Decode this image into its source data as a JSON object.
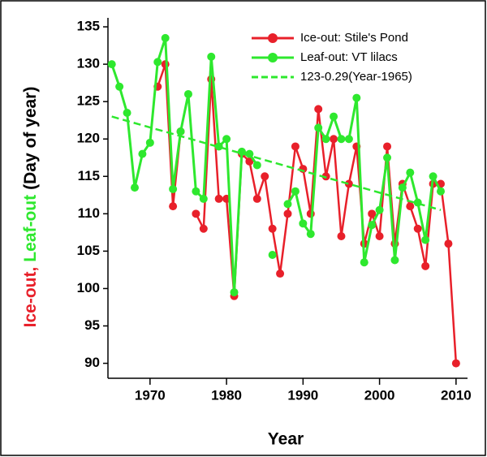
{
  "chart_data": {
    "type": "line",
    "x_label": "Year",
    "y_label_parts": [
      {
        "text": "Ice-out,",
        "color": "#e8202a"
      },
      {
        "text": "Leaf-out",
        "color": "#2ee82e"
      },
      {
        "text": "(Day of year)",
        "color": "#000000"
      }
    ],
    "x": [
      1965,
      1966,
      1967,
      1968,
      1969,
      1970,
      1971,
      1972,
      1973,
      1974,
      1975,
      1976,
      1977,
      1978,
      1979,
      1980,
      1981,
      1982,
      1983,
      1984,
      1985,
      1986,
      1987,
      1988,
      1989,
      1990,
      1991,
      1992,
      1993,
      1994,
      1995,
      1996,
      1997,
      1998,
      1999,
      2000,
      2001,
      2002,
      2003,
      2004,
      2005,
      2006,
      2007,
      2008,
      2009,
      2010
    ],
    "series": [
      {
        "name": "Ice-out: Stile's Pond",
        "color": "#e8202a",
        "values": [
          null,
          null,
          null,
          null,
          null,
          null,
          127,
          130,
          111,
          121,
          null,
          110,
          108,
          128,
          112,
          112,
          99,
          118,
          117,
          112,
          115,
          108,
          102,
          110,
          119,
          116,
          110,
          124,
          115,
          120,
          107,
          114,
          119,
          106,
          110,
          107,
          119,
          106,
          114,
          111,
          108,
          103,
          114,
          114,
          106,
          90
        ]
      },
      {
        "name": "Leaf-out: VT lilacs",
        "color": "#2ee82e",
        "values": [
          130,
          127,
          123.5,
          113.5,
          118,
          119.5,
          130.3,
          133.5,
          113.3,
          121,
          126,
          113,
          112,
          131,
          119,
          120,
          99.5,
          118.3,
          118,
          116.5,
          null,
          104.5,
          null,
          111.3,
          113,
          108.7,
          107.3,
          121.5,
          120,
          123,
          120,
          120,
          125.5,
          103.5,
          108.5,
          110.5,
          117.5,
          103.8,
          113.5,
          115.5,
          111.5,
          106.5,
          115,
          113,
          null,
          null
        ]
      },
      {
        "name": "123-0.29(Year-1965)",
        "color": "#2ee82e",
        "style": "dashed",
        "x": [
          1965,
          2008
        ],
        "values": [
          123,
          110.5
        ]
      }
    ],
    "xlim": [
      1964.5,
      2011.5
    ],
    "ylim": [
      88,
      136.2
    ],
    "xticks": [
      1970,
      1980,
      1990,
      2000,
      2010
    ],
    "yticks": [
      90,
      95,
      100,
      105,
      110,
      115,
      120,
      125,
      130,
      135
    ],
    "legend": "upper right"
  }
}
